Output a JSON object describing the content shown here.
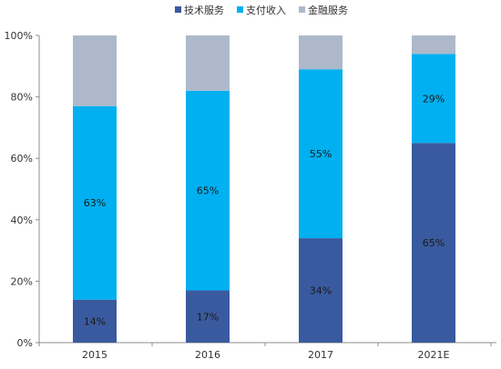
{
  "chart_data": {
    "type": "bar",
    "stacked": true,
    "percent_stacked": true,
    "categories": [
      "2015",
      "2016",
      "2017",
      "2021E"
    ],
    "series": [
      {
        "name": "技术服务",
        "color": "#3a5a9f",
        "values": [
          14,
          17,
          34,
          65
        ],
        "labels": [
          "14%",
          "17%",
          "34%",
          "65%"
        ]
      },
      {
        "name": "支付收入",
        "color": "#00b0f0",
        "values": [
          63,
          65,
          55,
          29
        ],
        "labels": [
          "63%",
          "65%",
          "55%",
          "29%"
        ]
      },
      {
        "name": "金融服务",
        "color": "#adb9ca",
        "values": [
          23,
          18,
          11,
          6
        ],
        "labels": [
          "",
          "",
          "",
          ""
        ]
      }
    ],
    "yticks": [
      "0%",
      "20%",
      "40%",
      "60%",
      "80%",
      "100%"
    ],
    "ylim": [
      0,
      100
    ],
    "grid": false,
    "legend_position": "top-center",
    "title": "",
    "xlabel": "",
    "ylabel": ""
  }
}
